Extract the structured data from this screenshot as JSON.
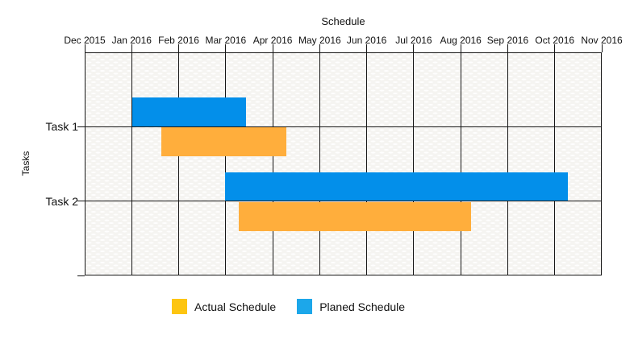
{
  "title": "Schedule",
  "legend": {
    "items": [
      {
        "id": "actual",
        "label": "Actual Schedule",
        "swatch_color": "#FDC511"
      },
      {
        "id": "planned",
        "label": "Planed Schedule",
        "swatch_color": "#1CA7EA"
      }
    ]
  },
  "chart_data": {
    "type": "gantt",
    "title": "Schedule",
    "ylabel": "Tasks",
    "x_axis": {
      "position": "top",
      "start": "2015-12-01",
      "end": "2016-11-01",
      "tick_labels": [
        "Dec 2015",
        "Jan 2016",
        "Feb 2016",
        "Mar 2016",
        "Apr 2016",
        "May 2016",
        "Jun 2016",
        "Jul 2016",
        "Aug 2016",
        "Sep 2016",
        "Oct 2016",
        "Nov 2016"
      ]
    },
    "tasks": [
      {
        "name": "Task 1",
        "planned": {
          "start": "2016-01-01",
          "end": "2016-03-15"
        },
        "actual": {
          "start": "2016-01-20",
          "end": "2016-04-10"
        }
      },
      {
        "name": "Task 2",
        "planned": {
          "start": "2016-03-01",
          "end": "2016-10-10"
        },
        "actual": {
          "start": "2016-03-10",
          "end": "2016-08-08"
        }
      }
    ],
    "colors": {
      "planned_bar": "#038FEA",
      "actual_bar": "#FFAE3C"
    },
    "layout": {
      "grid": true,
      "legend_position": "bottom"
    }
  }
}
